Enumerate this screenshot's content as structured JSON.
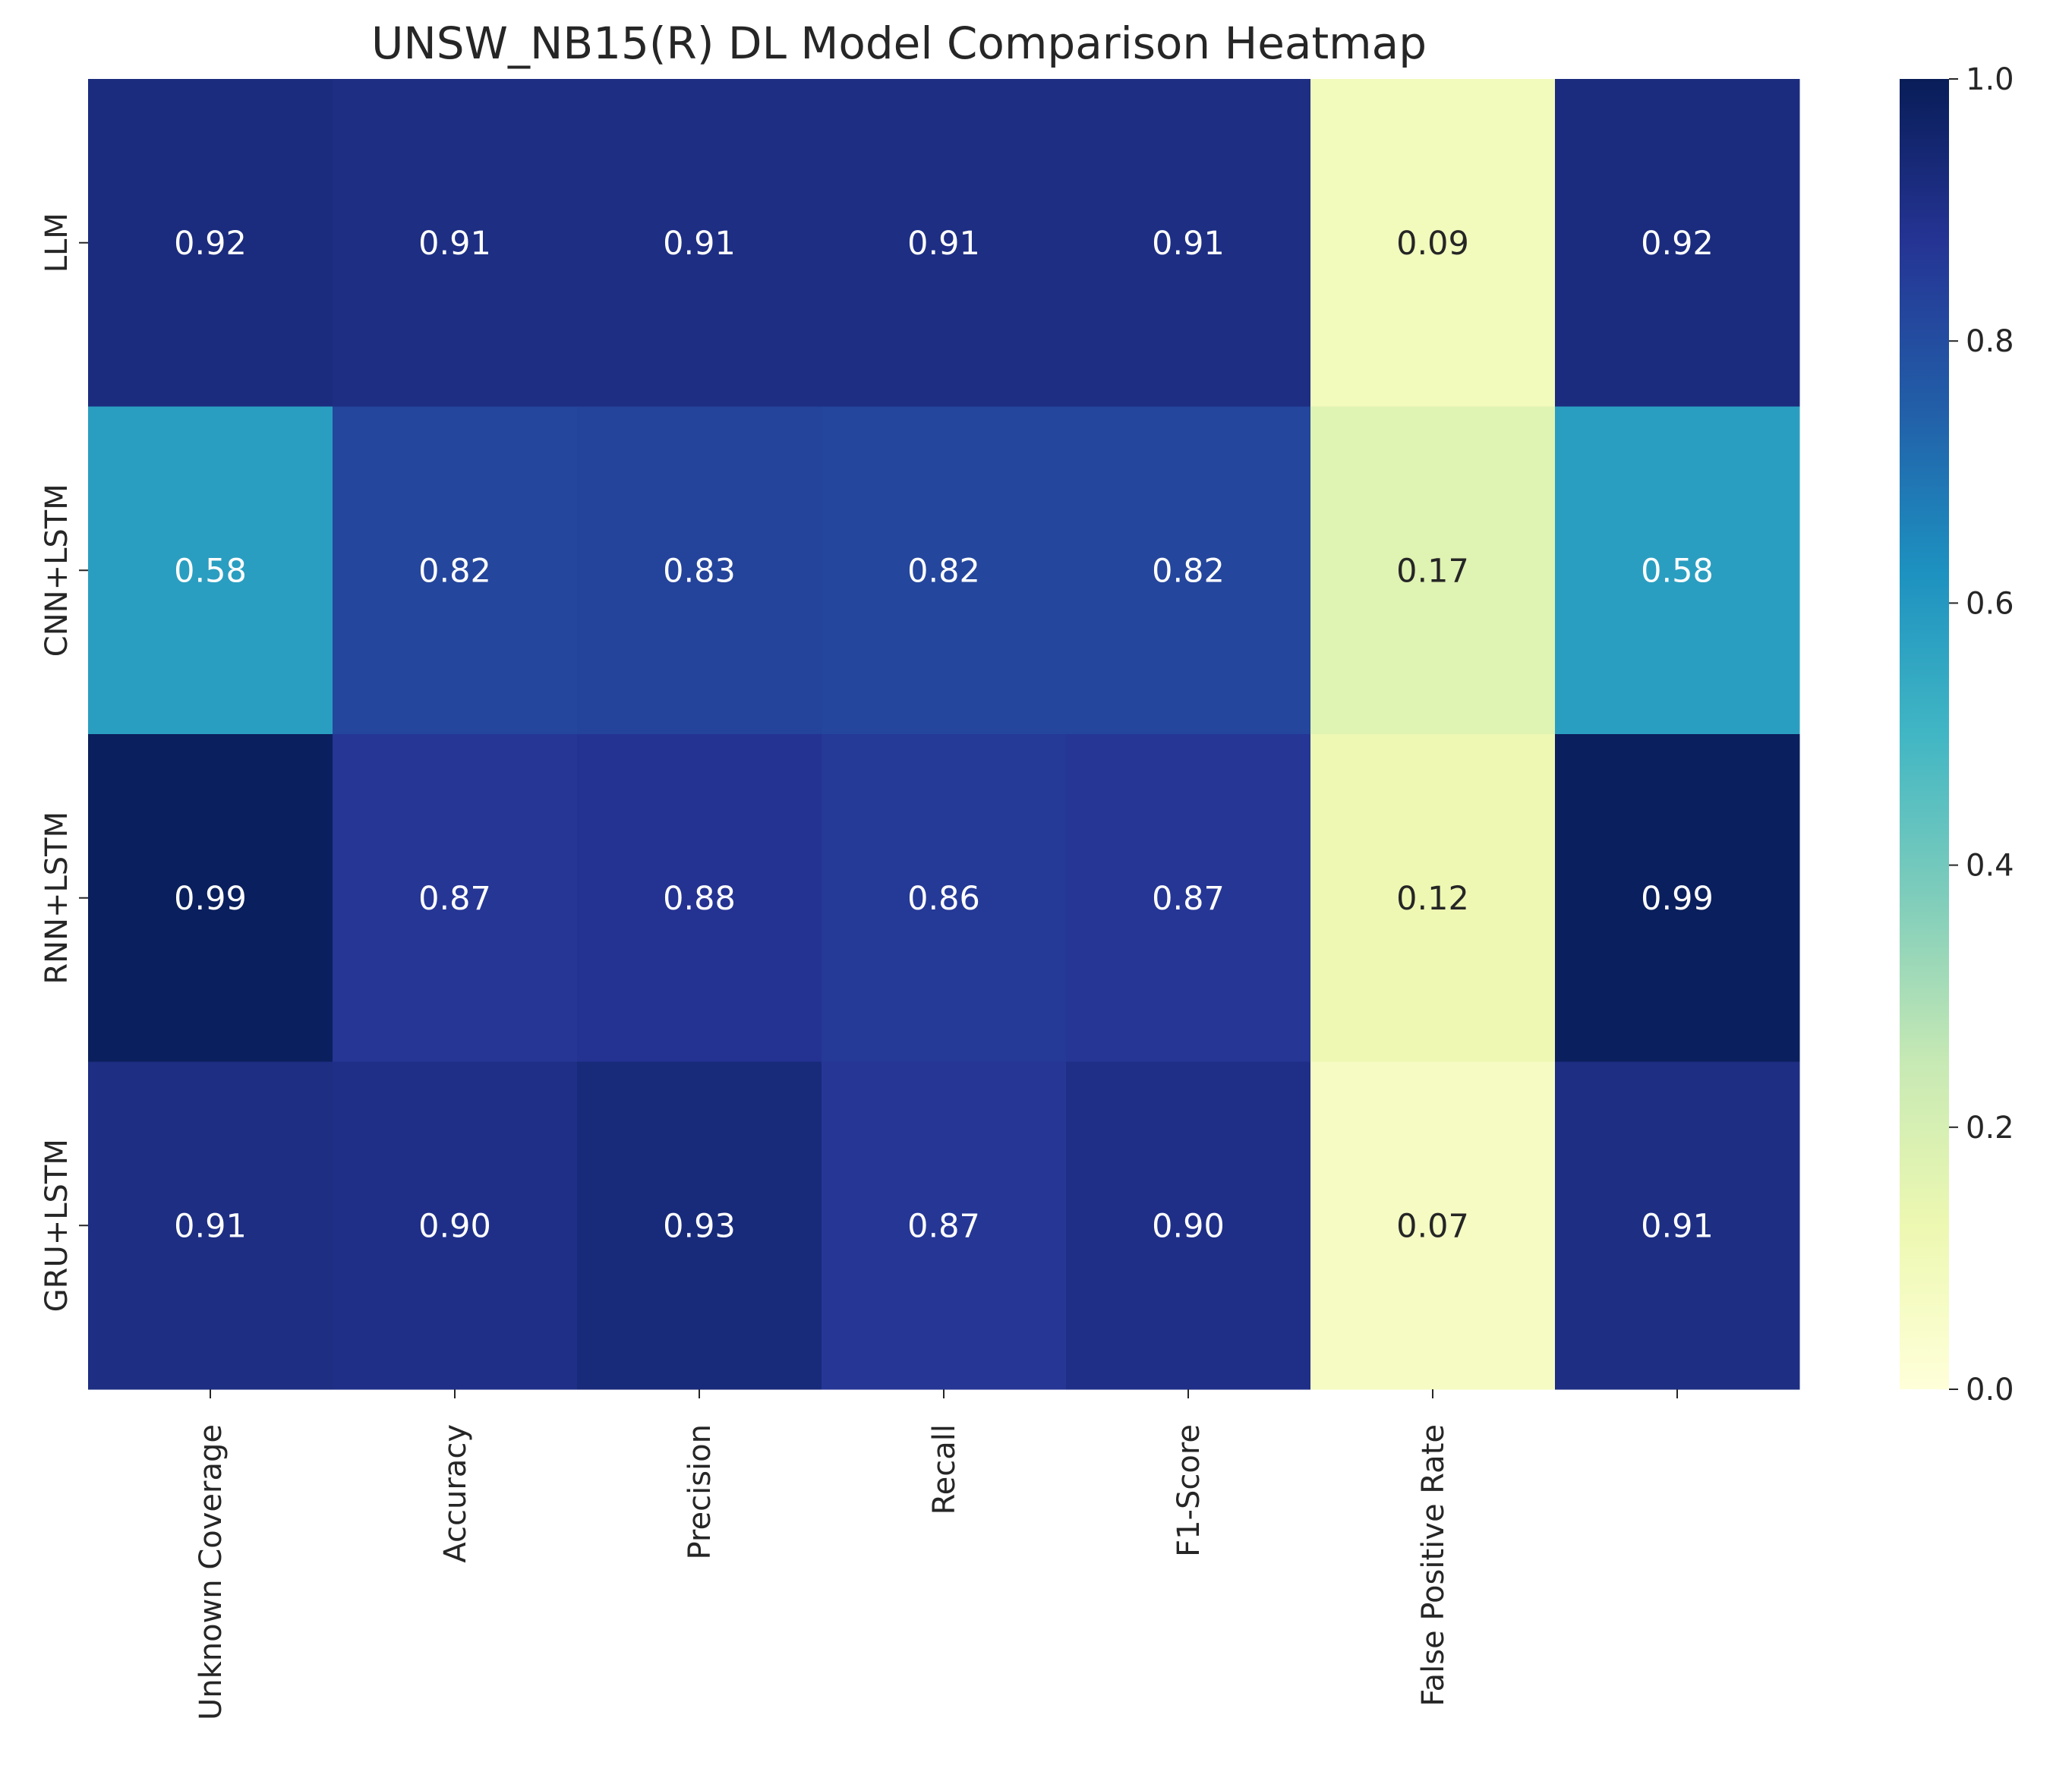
{
  "chart_data": {
    "type": "heatmap",
    "title": "UNSW_NB15(R) DL Model Comparison Heatmap",
    "rows": [
      "LLM",
      "CNN+LSTM",
      "RNN+LSTM",
      "GRU+LSTM"
    ],
    "columns": [
      "Unknown Coverage",
      "Accuracy",
      "Precision",
      "Recall",
      "F1-Score",
      "False Positive Rate",
      ""
    ],
    "values": [
      [
        0.92,
        0.91,
        0.91,
        0.91,
        0.91,
        0.09,
        0.92
      ],
      [
        0.58,
        0.82,
        0.83,
        0.82,
        0.82,
        0.17,
        0.58
      ],
      [
        0.99,
        0.87,
        0.88,
        0.86,
        0.87,
        0.12,
        0.99
      ],
      [
        0.91,
        0.9,
        0.93,
        0.87,
        0.9,
        0.07,
        0.91
      ]
    ],
    "value_format": "0.00",
    "colormap": "YlGnBu",
    "colorbar": {
      "range": [
        0.0,
        1.0
      ],
      "ticks": [
        "0.0",
        "0.2",
        "0.4",
        "0.6",
        "0.8",
        "1.0"
      ]
    },
    "xlabel": "",
    "ylabel": "",
    "grid": false
  }
}
